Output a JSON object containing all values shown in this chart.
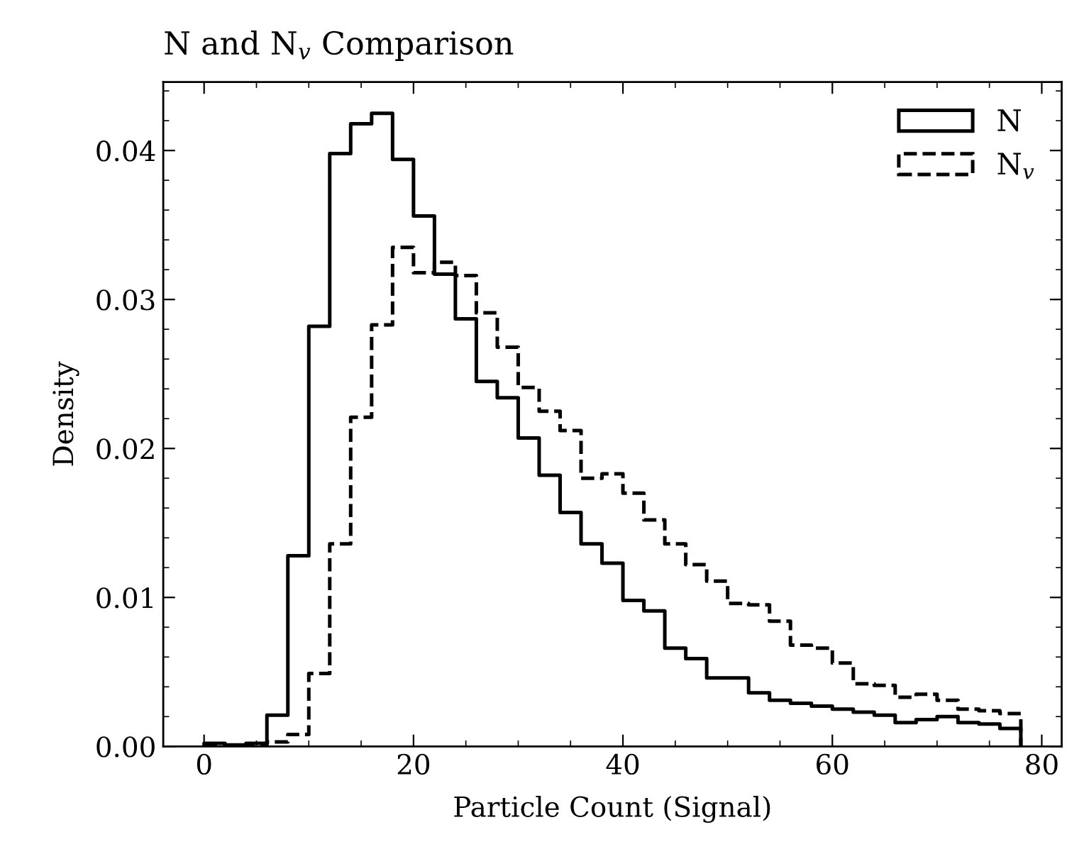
{
  "chart_data": {
    "type": "histogram",
    "title": "N and N$_{v}$ Comparison",
    "xlabel": "Particle Count (Signal)",
    "ylabel": "Density",
    "bins": [
      0,
      2,
      4,
      6,
      8,
      10,
      12,
      14,
      16,
      18,
      20,
      22,
      24,
      26,
      28,
      30,
      32,
      34,
      36,
      38,
      40,
      42,
      44,
      46,
      48,
      50,
      52,
      54,
      56,
      58,
      60,
      62,
      64,
      66,
      68,
      70,
      72,
      74,
      76,
      78
    ],
    "series": [
      {
        "name": "N",
        "color": "#000000",
        "line_style": "solid",
        "values": [
          0.0002,
          0.0001,
          0.0002,
          0.0021,
          0.0128,
          0.0282,
          0.0398,
          0.0418,
          0.0425,
          0.0394,
          0.0356,
          0.0317,
          0.0287,
          0.0245,
          0.0234,
          0.0207,
          0.0182,
          0.0157,
          0.0136,
          0.0123,
          0.0098,
          0.0091,
          0.0066,
          0.0059,
          0.0046,
          0.0046,
          0.0036,
          0.0031,
          0.0029,
          0.0027,
          0.0025,
          0.0023,
          0.0021,
          0.0016,
          0.0018,
          0.002,
          0.0016,
          0.0015,
          0.0012
        ]
      },
      {
        "name": "N$_{v}$",
        "color": "#000000",
        "line_style": "dashed",
        "values": [
          0,
          0,
          0,
          0.0003,
          0.0008,
          0.0049,
          0.0136,
          0.0221,
          0.0283,
          0.0335,
          0.0318,
          0.0325,
          0.0316,
          0.0291,
          0.0268,
          0.0241,
          0.0225,
          0.0212,
          0.018,
          0.0183,
          0.017,
          0.0152,
          0.0136,
          0.0122,
          0.0111,
          0.0096,
          0.0095,
          0.0084,
          0.0068,
          0.0066,
          0.0056,
          0.0042,
          0.0041,
          0.0033,
          0.0035,
          0.0031,
          0.0025,
          0.0024,
          0.0022
        ]
      }
    ],
    "xlim": [
      -3.9,
      81.9
    ],
    "xticks": [
      0,
      20,
      40,
      60,
      80
    ],
    "ylim": [
      0,
      0.0446
    ],
    "yticks": [
      {
        "value": 0,
        "label": "0.00"
      },
      {
        "value": 0.01,
        "label": "0.01"
      },
      {
        "value": 0.02,
        "label": "0.02"
      },
      {
        "value": 0.03,
        "label": "0.03"
      },
      {
        "value": 0.04,
        "label": "0.04"
      }
    ],
    "grid": false,
    "legend": "top right"
  }
}
